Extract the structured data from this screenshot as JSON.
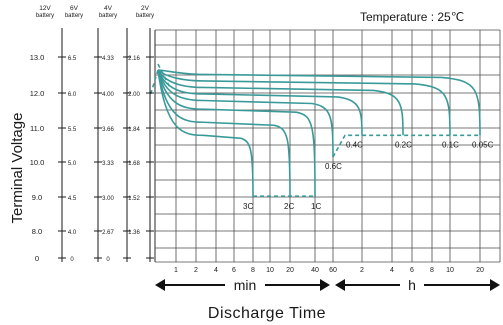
{
  "chart_data": {
    "type": "line",
    "title": "Temperature : 25℃",
    "ylabel": "Terminal Voltage",
    "xlabel": "Discharge  Time",
    "x_units": {
      "left": "min",
      "right": "h"
    },
    "axes": [
      {
        "header": [
          "12V",
          "battery"
        ],
        "ticks": [
          "13.0",
          "12.0",
          "11.0",
          "10.0",
          "9.0",
          "8.0",
          "0"
        ]
      },
      {
        "header": [
          "6V",
          "battery"
        ],
        "ticks": [
          "6.5",
          "6.0",
          "5.5",
          "5.0",
          "4.5",
          "4.0",
          "0"
        ]
      },
      {
        "header": [
          "4V",
          "battery"
        ],
        "ticks": [
          "4.33",
          "4.00",
          "3.66",
          "3.33",
          "3.00",
          "2.67",
          "0"
        ]
      },
      {
        "header": [
          "2V",
          "battery"
        ],
        "ticks": [
          "2.16",
          "2.00",
          "1.84",
          "1.68",
          "1.52",
          "1.36",
          ""
        ]
      }
    ],
    "x_ticks_min": [
      "1",
      "2",
      "4",
      "6",
      "8",
      "10",
      "20",
      "40",
      "60"
    ],
    "x_ticks_h": [
      "2",
      "4",
      "6",
      "8",
      "10",
      "20"
    ],
    "series": [
      {
        "name": "3C",
        "end_minutes": 8,
        "end_voltage_2v": 1.52
      },
      {
        "name": "2C",
        "end_minutes": 20,
        "end_voltage_2v": 1.52
      },
      {
        "name": "1C",
        "end_minutes": 40,
        "end_voltage_2v": 1.52
      },
      {
        "name": "0.6C",
        "end_minutes": 60,
        "end_voltage_2v": 1.7
      },
      {
        "name": "0.4C",
        "end_minutes": 120,
        "end_voltage_2v": 1.8
      },
      {
        "name": "0.2C",
        "end_minutes": 300,
        "end_voltage_2v": 1.8
      },
      {
        "name": "0.1C",
        "end_minutes": 600,
        "end_voltage_2v": 1.8
      },
      {
        "name": "0.05C",
        "end_minutes": 1200,
        "end_voltage_2v": 1.8
      }
    ]
  },
  "colors": {
    "curve": "#3a9a9a",
    "grid": "#4d4d4d",
    "text": "#1a1a1a"
  }
}
